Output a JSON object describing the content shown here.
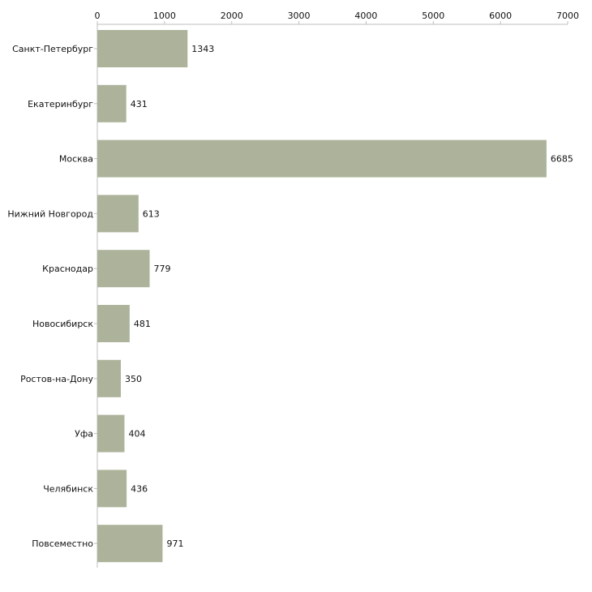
{
  "chart_data": {
    "type": "bar",
    "orientation": "horizontal",
    "title": "",
    "xlabel": "",
    "ylabel": "",
    "xlim": [
      0,
      7000
    ],
    "x_ticks": [
      0,
      1000,
      2000,
      3000,
      4000,
      5000,
      6000,
      7000
    ],
    "categories": [
      "Санкт-Петербург",
      "Екатеринбург",
      "Москва",
      "Нижний Новгород",
      "Краснодар",
      "Новосибирск",
      "Ростов-на-Дону",
      "Уфа",
      "Челябинск",
      "Повсеместно"
    ],
    "values": [
      1343,
      431,
      6685,
      613,
      779,
      481,
      350,
      404,
      436,
      971
    ],
    "axis_position": "top",
    "grid": false,
    "legend": "none",
    "colors": {
      "bar": "#acb39a",
      "axis": "#bfbfbf",
      "text": "#111111",
      "background": "#ffffff"
    }
  }
}
